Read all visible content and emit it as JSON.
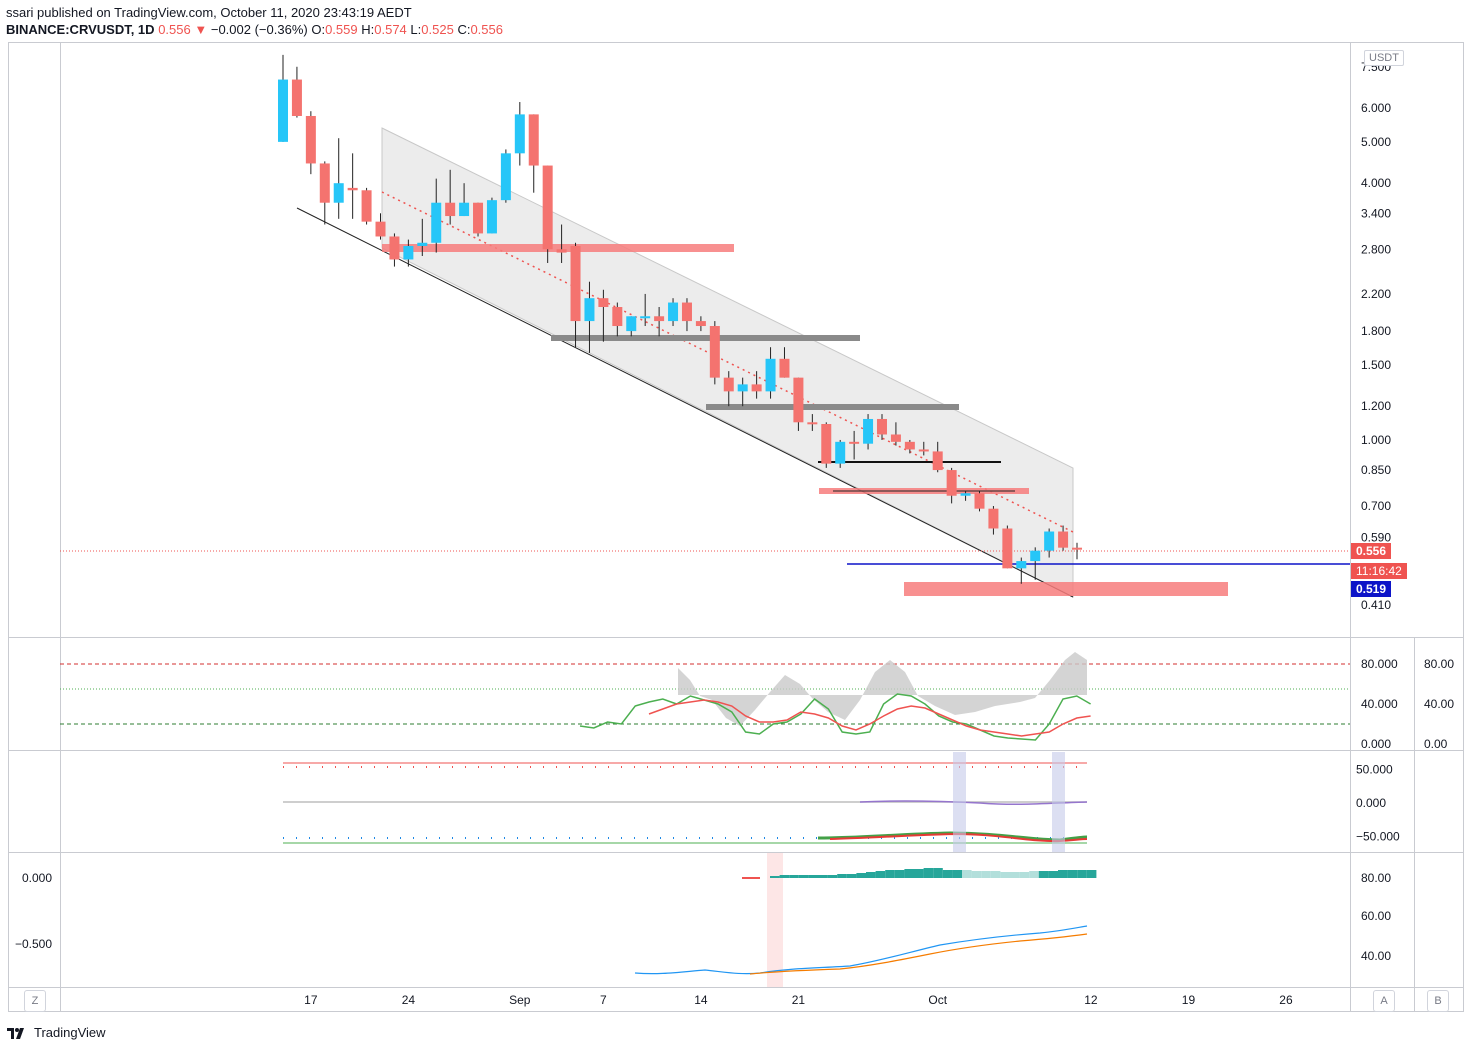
{
  "header": {
    "published": "ssari published on TradingView.com, October 11, 2020 23:43:19 AEDT",
    "symbol": "BINANCE:CRVUSDT, 1D",
    "last": "0.556",
    "change_arrow": "▼",
    "change": "−0.002 (−0.36%)",
    "o_label": "O:",
    "o_value": "0.559",
    "h_label": "H:",
    "h_value": "0.574",
    "l_label": "L:",
    "l_value": "0.525",
    "c_label": "C:",
    "c_value": "0.556"
  },
  "currency_badge": "USDT",
  "price_tags": {
    "last": "0.556",
    "countdown": "11:16:42",
    "line": "0.519"
  },
  "colors": {
    "up": "#26c6f8",
    "down": "#f4736f",
    "channel_fill": "#e6e6e6",
    "resistance_zone": "#f77c7c",
    "gray_level": "#8a8a8a",
    "blue_line": "#0d14c8",
    "stoch_k": "#4caf50",
    "stoch_d": "#ef5350",
    "macd_hist_strong": "#26a69a",
    "macd_hist_weak": "#b2dfdb",
    "ma_fast": "#2196f3",
    "ma_slow": "#f57c00"
  },
  "footer": {
    "brand": "TradingView",
    "btn_left": "Z",
    "btn_auto": "A",
    "btn_log": "B"
  },
  "chart_data": [
    {
      "type": "candlestick",
      "scale": "log",
      "y_ticks": [
        "7.500",
        "6.000",
        "5.000",
        "4.000",
        "3.400",
        "2.800",
        "2.200",
        "1.800",
        "1.500",
        "1.200",
        "1.000",
        "0.850",
        "0.700",
        "0.590",
        "0.410"
      ],
      "x_ticks": [
        "17",
        "24",
        "Sep",
        "7",
        "14",
        "21",
        "Oct",
        "12",
        "19",
        "26"
      ],
      "candles": [
        {
          "date": "2020-08-15",
          "o": 5.0,
          "h": 8.0,
          "l": 5.0,
          "c": 7.0
        },
        {
          "date": "2020-08-16",
          "o": 7.0,
          "h": 7.5,
          "l": 5.7,
          "c": 5.75
        },
        {
          "date": "2020-08-17",
          "o": 5.75,
          "h": 5.9,
          "l": 4.2,
          "c": 4.45
        },
        {
          "date": "2020-08-18",
          "o": 4.45,
          "h": 4.5,
          "l": 3.2,
          "c": 3.6
        },
        {
          "date": "2020-08-19",
          "o": 3.6,
          "h": 5.1,
          "l": 3.3,
          "c": 4.0
        },
        {
          "date": "2020-08-20",
          "o": 3.9,
          "h": 4.7,
          "l": 3.3,
          "c": 3.85
        },
        {
          "date": "2020-08-21",
          "o": 3.85,
          "h": 3.9,
          "l": 3.2,
          "c": 3.25
        },
        {
          "date": "2020-08-22",
          "o": 3.25,
          "h": 3.4,
          "l": 2.95,
          "c": 3.0
        },
        {
          "date": "2020-08-23",
          "o": 3.0,
          "h": 3.05,
          "l": 2.55,
          "c": 2.65
        },
        {
          "date": "2020-08-24",
          "o": 2.65,
          "h": 2.95,
          "l": 2.55,
          "c": 2.85
        },
        {
          "date": "2020-08-25",
          "o": 2.85,
          "h": 3.3,
          "l": 2.7,
          "c": 2.9
        },
        {
          "date": "2020-08-26",
          "o": 2.9,
          "h": 4.1,
          "l": 2.75,
          "c": 3.6
        },
        {
          "date": "2020-08-27",
          "o": 3.6,
          "h": 4.3,
          "l": 3.2,
          "c": 3.35
        },
        {
          "date": "2020-08-28",
          "o": 3.35,
          "h": 4.0,
          "l": 3.35,
          "c": 3.6
        },
        {
          "date": "2020-08-29",
          "o": 3.6,
          "h": 3.6,
          "l": 3.0,
          "c": 3.05
        },
        {
          "date": "2020-08-30",
          "o": 3.05,
          "h": 3.7,
          "l": 3.05,
          "c": 3.65
        },
        {
          "date": "2020-08-31",
          "o": 3.65,
          "h": 4.8,
          "l": 3.6,
          "c": 4.7
        },
        {
          "date": "2020-09-01",
          "o": 4.7,
          "h": 6.2,
          "l": 4.4,
          "c": 5.8
        },
        {
          "date": "2020-09-02",
          "o": 5.8,
          "h": 5.8,
          "l": 3.8,
          "c": 4.4
        },
        {
          "date": "2020-09-03",
          "o": 4.4,
          "h": 4.4,
          "l": 2.6,
          "c": 2.8
        },
        {
          "date": "2020-09-04",
          "o": 2.8,
          "h": 3.2,
          "l": 2.6,
          "c": 2.75
        },
        {
          "date": "2020-09-05",
          "o": 2.85,
          "h": 2.9,
          "l": 1.65,
          "c": 1.9
        },
        {
          "date": "2020-09-06",
          "o": 1.9,
          "h": 2.35,
          "l": 1.6,
          "c": 2.15
        },
        {
          "date": "2020-09-07",
          "o": 2.15,
          "h": 2.25,
          "l": 1.7,
          "c": 2.05
        },
        {
          "date": "2020-09-08",
          "o": 2.05,
          "h": 2.1,
          "l": 1.75,
          "c": 1.85
        },
        {
          "date": "2020-09-09",
          "o": 1.8,
          "h": 1.95,
          "l": 1.75,
          "c": 1.95
        },
        {
          "date": "2020-09-10",
          "o": 1.95,
          "h": 2.2,
          "l": 1.85,
          "c": 1.95
        },
        {
          "date": "2020-09-11",
          "o": 1.95,
          "h": 2.05,
          "l": 1.75,
          "c": 1.9
        },
        {
          "date": "2020-09-12",
          "o": 1.9,
          "h": 2.15,
          "l": 1.85,
          "c": 2.1
        },
        {
          "date": "2020-09-13",
          "o": 2.1,
          "h": 2.15,
          "l": 1.8,
          "c": 1.9
        },
        {
          "date": "2020-09-14",
          "o": 1.9,
          "h": 1.95,
          "l": 1.8,
          "c": 1.85
        },
        {
          "date": "2020-09-15",
          "o": 1.85,
          "h": 1.9,
          "l": 1.35,
          "c": 1.4
        },
        {
          "date": "2020-09-16",
          "o": 1.4,
          "h": 1.45,
          "l": 1.2,
          "c": 1.3
        },
        {
          "date": "2020-09-17",
          "o": 1.3,
          "h": 1.4,
          "l": 1.2,
          "c": 1.35
        },
        {
          "date": "2020-09-18",
          "o": 1.35,
          "h": 1.45,
          "l": 1.25,
          "c": 1.3
        },
        {
          "date": "2020-09-19",
          "o": 1.3,
          "h": 1.65,
          "l": 1.25,
          "c": 1.55
        },
        {
          "date": "2020-09-20",
          "o": 1.55,
          "h": 1.65,
          "l": 1.4,
          "c": 1.4
        },
        {
          "date": "2020-09-21",
          "o": 1.4,
          "h": 1.4,
          "l": 1.05,
          "c": 1.1
        },
        {
          "date": "2020-09-22",
          "o": 1.1,
          "h": 1.15,
          "l": 1.05,
          "c": 1.09
        },
        {
          "date": "2020-09-23",
          "o": 1.09,
          "h": 1.1,
          "l": 0.86,
          "c": 0.88
        },
        {
          "date": "2020-09-24",
          "o": 0.88,
          "h": 1.0,
          "l": 0.86,
          "c": 0.99
        },
        {
          "date": "2020-09-25",
          "o": 0.99,
          "h": 1.05,
          "l": 0.9,
          "c": 0.98
        },
        {
          "date": "2020-09-26",
          "o": 0.98,
          "h": 1.15,
          "l": 0.95,
          "c": 1.12
        },
        {
          "date": "2020-09-27",
          "o": 1.12,
          "h": 1.15,
          "l": 1.0,
          "c": 1.03
        },
        {
          "date": "2020-09-28",
          "o": 1.03,
          "h": 1.1,
          "l": 0.97,
          "c": 0.99
        },
        {
          "date": "2020-09-29",
          "o": 0.99,
          "h": 1.0,
          "l": 0.93,
          "c": 0.95
        },
        {
          "date": "2020-09-30",
          "o": 0.95,
          "h": 0.99,
          "l": 0.92,
          "c": 0.94
        },
        {
          "date": "2020-10-01",
          "o": 0.94,
          "h": 0.99,
          "l": 0.84,
          "c": 0.85
        },
        {
          "date": "2020-10-02",
          "o": 0.85,
          "h": 0.86,
          "l": 0.71,
          "c": 0.74
        },
        {
          "date": "2020-10-03",
          "o": 0.74,
          "h": 0.76,
          "l": 0.72,
          "c": 0.75
        },
        {
          "date": "2020-10-04",
          "o": 0.75,
          "h": 0.76,
          "l": 0.68,
          "c": 0.69
        },
        {
          "date": "2020-10-05",
          "o": 0.69,
          "h": 0.7,
          "l": 0.6,
          "c": 0.62
        },
        {
          "date": "2020-10-06",
          "o": 0.62,
          "h": 0.63,
          "l": 0.5,
          "c": 0.5
        },
        {
          "date": "2020-10-07",
          "o": 0.5,
          "h": 0.53,
          "l": 0.46,
          "c": 0.52
        },
        {
          "date": "2020-10-08",
          "o": 0.52,
          "h": 0.56,
          "l": 0.47,
          "c": 0.55
        },
        {
          "date": "2020-10-09",
          "o": 0.55,
          "h": 0.62,
          "l": 0.53,
          "c": 0.61
        },
        {
          "date": "2020-10-10",
          "o": 0.61,
          "h": 0.63,
          "l": 0.55,
          "c": 0.559
        },
        {
          "date": "2020-10-11",
          "o": 0.559,
          "h": 0.574,
          "l": 0.525,
          "c": 0.556
        }
      ],
      "levels": [
        {
          "price": 0.556,
          "style": "dotted",
          "color": "#ef5350"
        },
        {
          "price": 0.519,
          "style": "solid",
          "color": "#0d14c8"
        }
      ]
    },
    {
      "type": "line",
      "y_ticks": [
        "80.000",
        "40.000",
        "0.000"
      ],
      "y_ticks_outer": [
        "80.00",
        "40.00",
        "0.00"
      ],
      "reference_lines": [
        80,
        50,
        20
      ],
      "series": [
        {
          "values": [
            18,
            16,
            22,
            20,
            38,
            42,
            45,
            40,
            48,
            44,
            40,
            32,
            12,
            10,
            20,
            22,
            30,
            45,
            35,
            12,
            10,
            12,
            40,
            50,
            48,
            40,
            28,
            22,
            20,
            14,
            8,
            6,
            5,
            4,
            20,
            45,
            48,
            40
          ]
        },
        {
          "values": [
            null,
            null,
            null,
            null,
            null,
            30,
            35,
            40,
            42,
            44,
            42,
            38,
            28,
            22,
            22,
            24,
            32,
            30,
            26,
            18,
            14,
            20,
            28,
            35,
            38,
            36,
            30,
            24,
            18,
            14,
            12,
            10,
            8,
            10,
            12,
            20,
            26,
            28
          ]
        }
      ]
    },
    {
      "type": "line",
      "y_ticks": [
        "50.000",
        "0.000",
        "−50.000"
      ],
      "reference_lines": [
        50,
        0,
        -50
      ]
    },
    {
      "type": "bar",
      "y_ticks_left": [
        "0.000",
        "−0.500"
      ],
      "y_ticks_right": [
        "80.00",
        "60.00",
        "40.00"
      ]
    }
  ]
}
